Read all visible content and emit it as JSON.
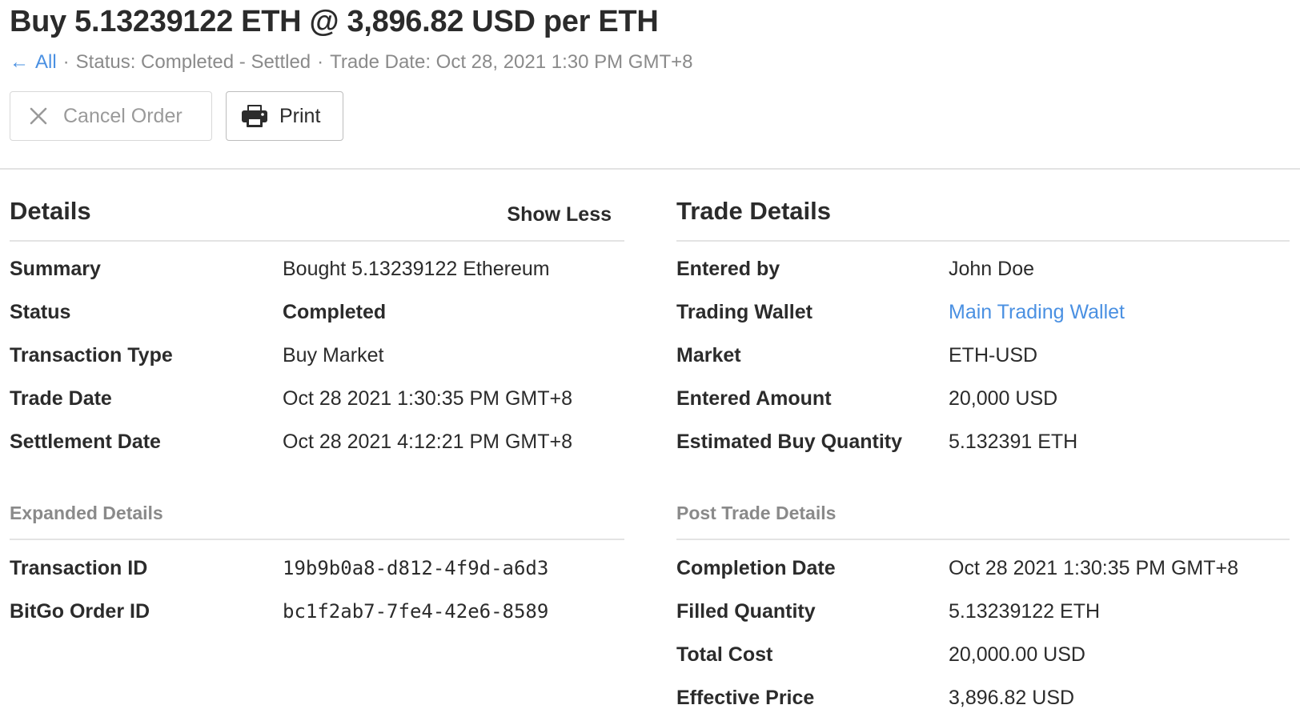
{
  "header": {
    "title": "Buy 5.13239122 ETH @ 3,896.82 USD per ETH",
    "back_label": "All",
    "status_text": "Status: Completed - Settled",
    "trade_date_text": "Trade Date: Oct 28, 2021 1:30 PM GMT+8"
  },
  "toolbar": {
    "cancel_label": "Cancel Order",
    "print_label": "Print"
  },
  "details": {
    "heading": "Details",
    "toggle_label": "Show Less",
    "rows": [
      {
        "label": "Summary",
        "value": "Bought 5.13239122 Ethereum"
      },
      {
        "label": "Status",
        "value": "Completed"
      },
      {
        "label": "Transaction Type",
        "value": "Buy Market"
      },
      {
        "label": "Trade Date",
        "value": "Oct 28 2021 1:30:35 PM GMT+8"
      },
      {
        "label": "Settlement Date",
        "value": "Oct 28 2021 4:12:21 PM GMT+8"
      }
    ],
    "expanded_heading": "Expanded Details",
    "expanded_rows": [
      {
        "label": "Transaction ID",
        "value": "19b9b0a8-d812-4f9d-a6d3"
      },
      {
        "label": "BitGo Order ID",
        "value": "bc1f2ab7-7fe4-42e6-8589"
      }
    ]
  },
  "trade_details": {
    "heading": "Trade Details",
    "rows": [
      {
        "label": "Entered by",
        "value": "John Doe"
      },
      {
        "label": "Trading Wallet",
        "value": "Main Trading Wallet"
      },
      {
        "label": "Market",
        "value": "ETH-USD"
      },
      {
        "label": "Entered Amount",
        "value": "20,000 USD"
      },
      {
        "label": "Estimated Buy Quantity",
        "value": "5.132391 ETH"
      }
    ],
    "post_heading": "Post Trade Details",
    "post_rows": [
      {
        "label": "Completion Date",
        "value": "Oct 28 2021 1:30:35 PM GMT+8"
      },
      {
        "label": "Filled Quantity",
        "value": "5.13239122 ETH"
      },
      {
        "label": "Total Cost",
        "value": "20,000.00 USD"
      },
      {
        "label": "Effective Price",
        "value": "3,896.82 USD"
      }
    ]
  },
  "colors": {
    "link": "#4a90e2",
    "muted": "#8a8a8a",
    "text": "#2b2b2b",
    "divider": "#e3e3e3"
  }
}
